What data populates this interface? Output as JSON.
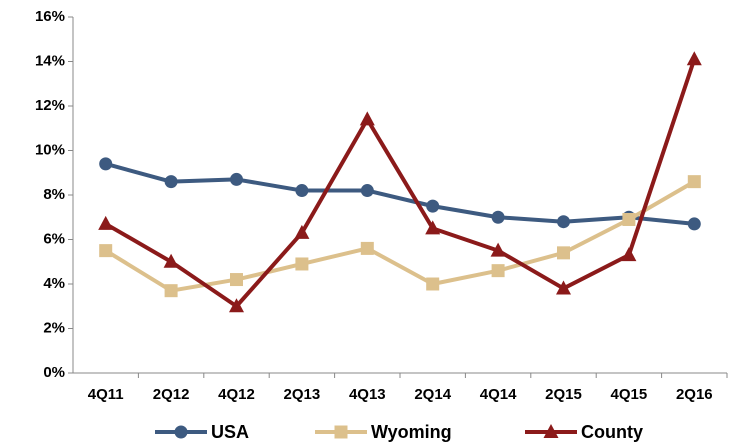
{
  "chart_data": {
    "type": "line",
    "categories": [
      "4Q11",
      "2Q12",
      "4Q12",
      "2Q13",
      "4Q13",
      "2Q14",
      "4Q14",
      "2Q15",
      "4Q15",
      "2Q16"
    ],
    "series": [
      {
        "name": "USA",
        "color": "#3d5a80",
        "marker": "circle",
        "values": [
          9.4,
          8.6,
          8.7,
          8.2,
          8.2,
          7.5,
          7.0,
          6.8,
          7.0,
          6.7
        ]
      },
      {
        "name": "Wyoming",
        "color": "#dcc08c",
        "marker": "square",
        "values": [
          5.5,
          3.7,
          4.2,
          4.9,
          5.6,
          4.0,
          4.6,
          5.4,
          6.9,
          8.6
        ]
      },
      {
        "name": "County",
        "color": "#8b1a1a",
        "marker": "triangle",
        "values": [
          6.7,
          5.0,
          3.0,
          6.3,
          11.4,
          6.5,
          5.5,
          3.8,
          5.3,
          14.1
        ]
      }
    ],
    "ylim": [
      0,
      16
    ],
    "yticks": [
      {
        "value": 0,
        "label": "0%"
      },
      {
        "value": 2,
        "label": "2%"
      },
      {
        "value": 4,
        "label": "4%"
      },
      {
        "value": 6,
        "label": "6%"
      },
      {
        "value": 8,
        "label": "8%"
      },
      {
        "value": 10,
        "label": "10%"
      },
      {
        "value": 12,
        "label": "12%"
      },
      {
        "value": 14,
        "label": "14%"
      },
      {
        "value": 16,
        "label": "16%"
      }
    ],
    "grid": false,
    "legend": "bottom"
  }
}
